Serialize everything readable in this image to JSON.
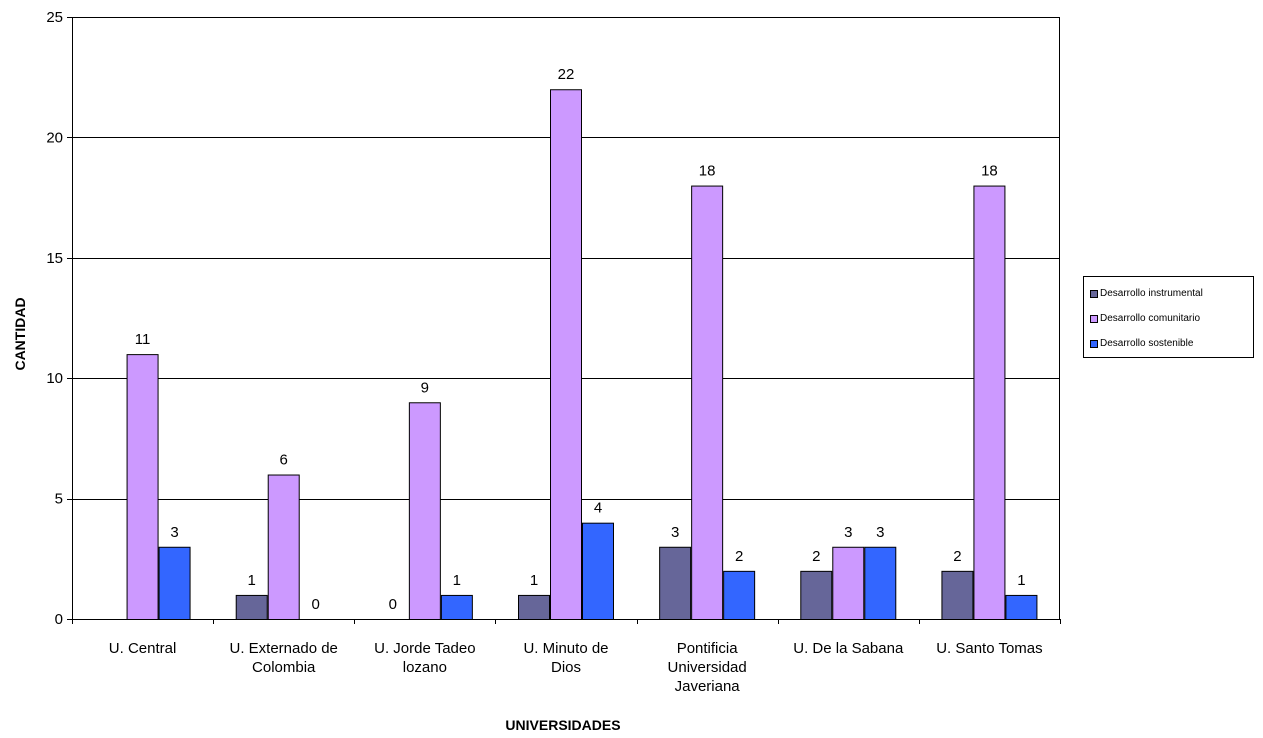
{
  "chart_data": {
    "type": "bar",
    "xlabel": "UNIVERSIDADES",
    "ylabel": "CANTIDAD",
    "ylim": [
      0,
      25
    ],
    "yticks": [
      0,
      5,
      10,
      15,
      20,
      25
    ],
    "grid": true,
    "legend_position": "right",
    "categories": [
      [
        "U. Central"
      ],
      [
        "U. Externado de",
        "Colombia"
      ],
      [
        "U. Jorde Tadeo",
        "lozano"
      ],
      [
        "U. Minuto de",
        "Dios"
      ],
      [
        "Pontificia",
        "Universidad",
        "Javeriana"
      ],
      [
        "U. De la Sabana"
      ],
      [
        "U. Santo Tomas"
      ]
    ],
    "series": [
      {
        "name": "Desarrollo instrumental",
        "color": "#666699",
        "values": [
          null,
          1,
          0,
          1,
          3,
          2,
          2
        ]
      },
      {
        "name": "Desarrollo comunitario",
        "color": "#CC99FF",
        "values": [
          11,
          6,
          9,
          22,
          18,
          3,
          18
        ]
      },
      {
        "name": "Desarrollo sostenible",
        "color": "#3366FF",
        "values": [
          3,
          0,
          1,
          4,
          2,
          3,
          1
        ]
      }
    ]
  }
}
